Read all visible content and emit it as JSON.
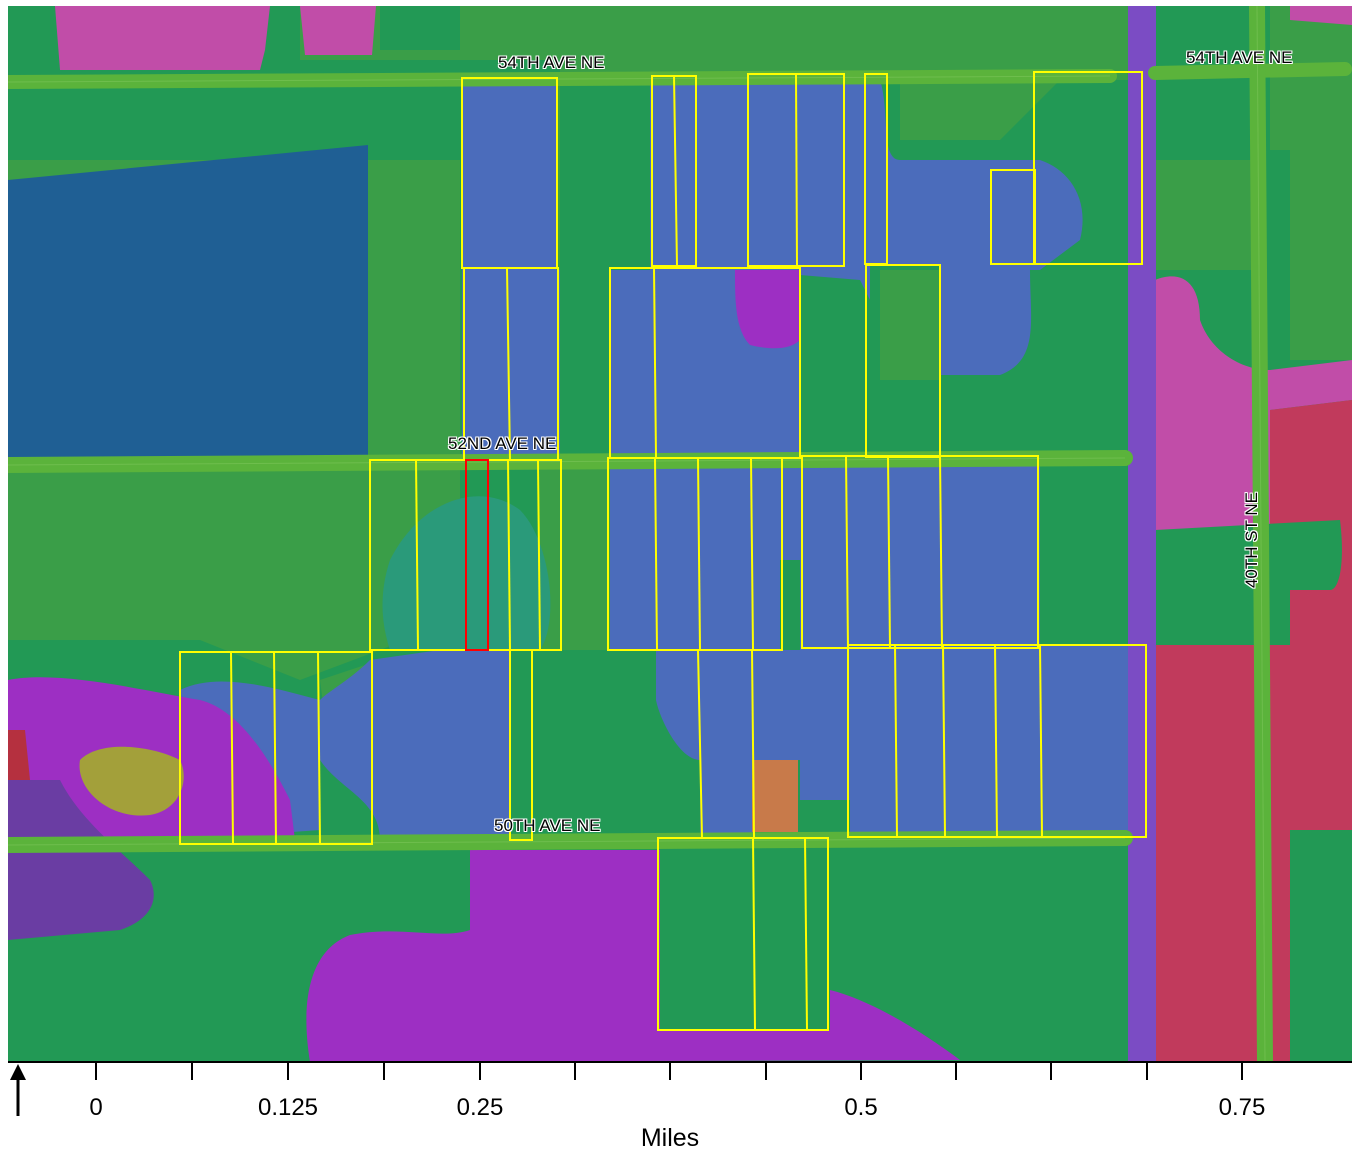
{
  "map": {
    "roads": {
      "ave_54_left": "54TH AVE NE",
      "ave_54_right": "54TH AVE NE",
      "ave_52": "52ND AVE NE",
      "ave_50": "50TH AVE NE",
      "st_40": "40TH ST NE"
    },
    "colors": {
      "background_green": "#229955",
      "light_green": "#3a9e48",
      "blue": "#4b6cbb",
      "dark_blue": "#1f5f94",
      "magenta": "#c14da8",
      "purple": "#9d2fc3",
      "crimson": "#c13a5c",
      "road": "#5bb33b",
      "parcel_outline": "#ffff00",
      "selected_parcel": "#ff0000"
    },
    "selected_parcel_count": 1
  },
  "scale": {
    "ticks": [
      "0",
      "0.125",
      "0.25",
      "0.5",
      "0.75"
    ],
    "unit": "Miles",
    "north_arrow": "north-arrow-icon"
  }
}
